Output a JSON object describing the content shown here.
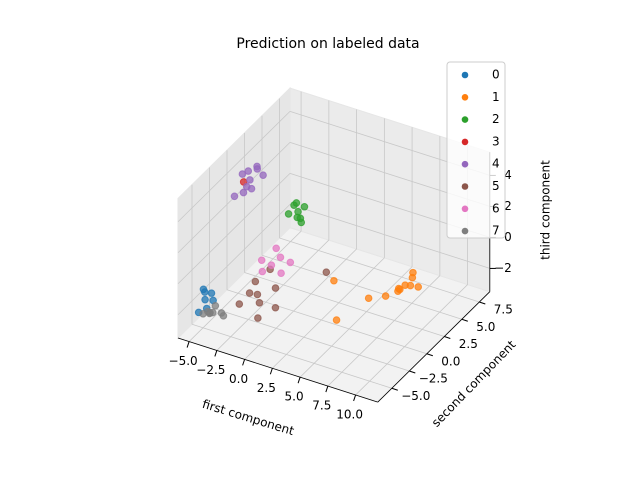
{
  "chart_data": {
    "type": "scatter3d",
    "title": "Prediction on labeled data",
    "xlabel": "first component",
    "ylabel": "second component",
    "zlabel": "third component",
    "xlim": [
      -6,
      12
    ],
    "ylim": [
      -7,
      9
    ],
    "zlim": [
      -3.5,
      5.5
    ],
    "xticks": [
      {
        "value": -5,
        "label": "−5.0"
      },
      {
        "value": -2.5,
        "label": "−2.5"
      },
      {
        "value": 0,
        "label": "0.0"
      },
      {
        "value": 2.5,
        "label": "2.5"
      },
      {
        "value": 5,
        "label": "5.0"
      },
      {
        "value": 7.5,
        "label": "7.5"
      },
      {
        "value": 10,
        "label": "10.0"
      }
    ],
    "yticks": [
      {
        "value": -5,
        "label": "−5.0"
      },
      {
        "value": -2.5,
        "label": "−2.5"
      },
      {
        "value": 0,
        "label": "0.0"
      },
      {
        "value": 2.5,
        "label": "2.5"
      },
      {
        "value": 5,
        "label": "5.0"
      },
      {
        "value": 7.5,
        "label": "7.5"
      }
    ],
    "zticks": [
      {
        "value": -2,
        "label": "−2"
      },
      0,
      2,
      4
    ],
    "grid": true,
    "series": [
      {
        "name": "0",
        "color": "#1f77b4",
        "x": [
          -5.2,
          -5.6,
          -4.8,
          -5.0,
          -5.4,
          -4.6,
          -5.1
        ],
        "y": [
          -4.4,
          -4.0,
          -4.8,
          -3.8,
          -5.0,
          -4.2,
          -4.6
        ],
        "z": [
          -2,
          -1.6,
          -2.3,
          -1.8,
          -2.6,
          -2.0,
          -1.4
        ]
      },
      {
        "name": "1",
        "color": "#ff7f0e",
        "x": [
          7.4,
          7.8,
          7.0,
          8.0,
          7.6,
          6.8,
          7.2,
          8.2,
          6.4,
          5.5,
          3.0,
          4.5
        ],
        "y": [
          4.2,
          4.6,
          3.8,
          4.0,
          5.0,
          4.4,
          3.6,
          4.8,
          3.0,
          2.0,
          1.0,
          -1.0
        ],
        "z": [
          -2,
          -1.6,
          -2.3,
          -1.8,
          -1.5,
          -2.5,
          -2.0,
          -2.2,
          -2.4,
          -2.3,
          -1.3,
          -2.6
        ]
      },
      {
        "name": "2",
        "color": "#2ca02c",
        "x": [
          0.4,
          0.0,
          0.8,
          0.2,
          0.6,
          -0.2,
          0.5,
          0.1
        ],
        "y": [
          0,
          0.4,
          -0.3,
          0.2,
          0.6,
          -0.4,
          0.3,
          -0.1
        ],
        "z": [
          3,
          3.3,
          2.8,
          2.5,
          3.1,
          2.9,
          2.2,
          3.4
        ]
      },
      {
        "name": "3",
        "color": "#d62728",
        "x": [
          -4.5
        ],
        "y": [
          0
        ],
        "z": [
          3.8
        ]
      },
      {
        "name": "4",
        "color": "#9467bd",
        "x": [
          -4,
          -4.4,
          -3.6,
          -4.8,
          -3.8,
          -4.2,
          -3.4,
          -5.2,
          -4.6,
          -3.0
        ],
        "y": [
          0.1,
          0.5,
          -0.3,
          0.3,
          0.8,
          -0.5,
          0.2,
          -0.2,
          0.6,
          0.4
        ],
        "z": [
          4,
          4.3,
          3.7,
          4.1,
          4.6,
          3.4,
          4.8,
          2.8,
          3.2,
          4.4
        ]
      },
      {
        "name": "5",
        "color": "#8c564b",
        "x": [
          -2,
          -2.5,
          -1.5,
          -1.0,
          -3.0,
          -2.2,
          -0.5,
          2.0,
          -1.8,
          -1.2
        ],
        "y": [
          -2,
          -1.5,
          -2.5,
          -1.0,
          -3.0,
          -2.8,
          -1.8,
          1.5,
          -0.5,
          -3.2
        ],
        "z": [
          -2,
          -1.5,
          -2.2,
          -1.8,
          -2.4,
          -1.6,
          -2.6,
          -1.2,
          -1.0,
          -2.8
        ]
      },
      {
        "name": "6",
        "color": "#e377c2",
        "x": [
          -2,
          -1.5,
          -2.5,
          -1,
          -2.2,
          -0.8,
          -3.0
        ],
        "y": [
          0,
          0.5,
          -0.5,
          -0.2,
          1.0,
          0.8,
          0.2
        ],
        "z": [
          -1,
          -0.6,
          -1.3,
          -1.2,
          -0.4,
          -0.9,
          -1.0
        ]
      },
      {
        "name": "7",
        "color": "#7f7f7f",
        "x": [
          -4.5,
          -4.0,
          -4.8,
          -3.6,
          -4.2,
          -5.0,
          -3.8,
          -4.4
        ],
        "y": [
          -4.8,
          -5.2,
          -4.4,
          -4.6,
          -5.6,
          -5.0,
          -4.0,
          -4.2
        ],
        "z": [
          -2.5,
          -2.2,
          -2.8,
          -2.4,
          -2.0,
          -2.6,
          -2.9,
          -2.3
        ]
      }
    ]
  }
}
